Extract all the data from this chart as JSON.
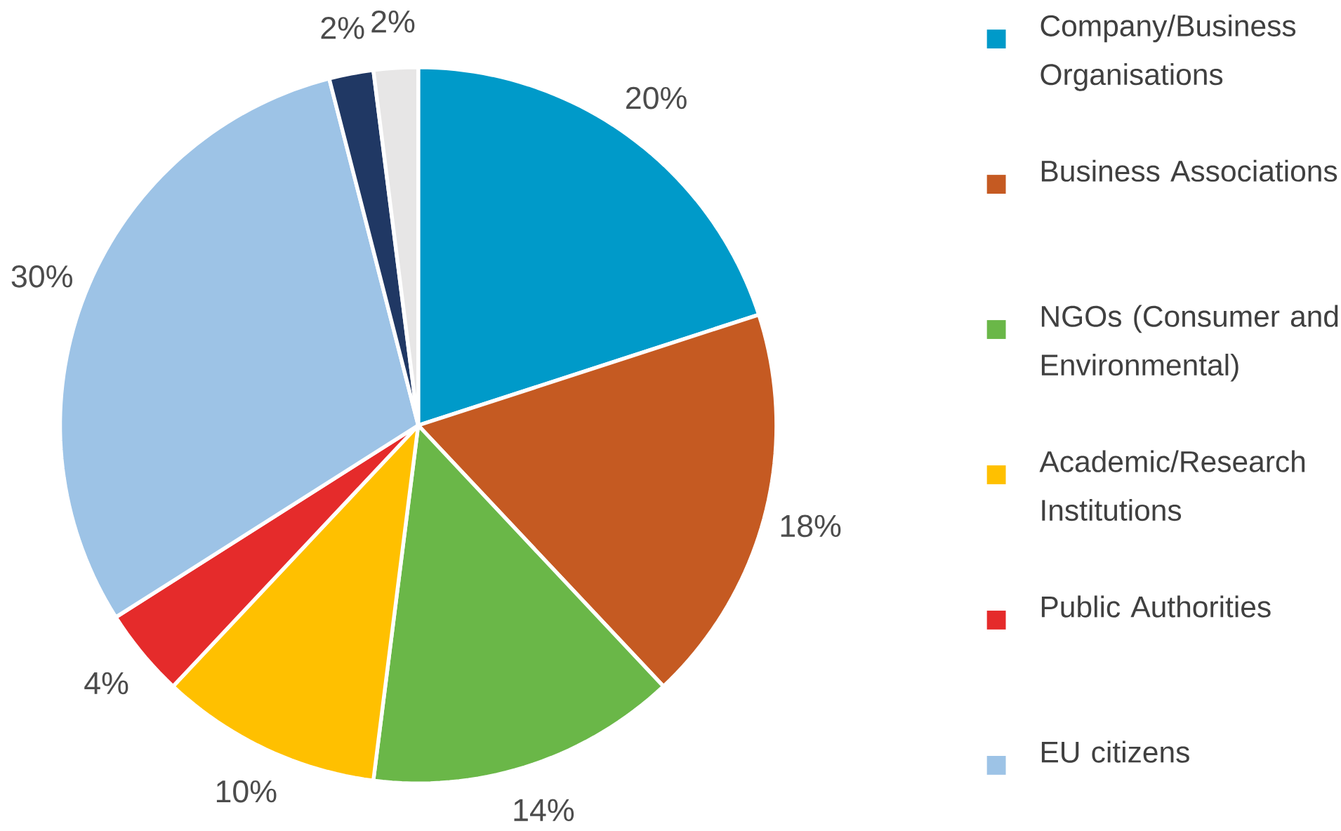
{
  "chart_data": {
    "type": "pie",
    "categories": [
      "Company/Business Organisations",
      "Business Associations",
      "NGOs (Consumer and Environmental)",
      "Academic/Research Institutions",
      "Public Authorities",
      "EU citizens",
      null,
      null
    ],
    "values": [
      20,
      18,
      14,
      10,
      4,
      30,
      2,
      2
    ],
    "colors": [
      "#009ac9",
      "#c55a22",
      "#6ab748",
      "#ffc000",
      "#e52b2b",
      "#9dc3e6",
      "#203864",
      "#e7e6e6"
    ],
    "value_labels": [
      "20%",
      "18%",
      "14%",
      "10%",
      "4%",
      "30%",
      "2%",
      "2%"
    ],
    "legend": "right"
  }
}
